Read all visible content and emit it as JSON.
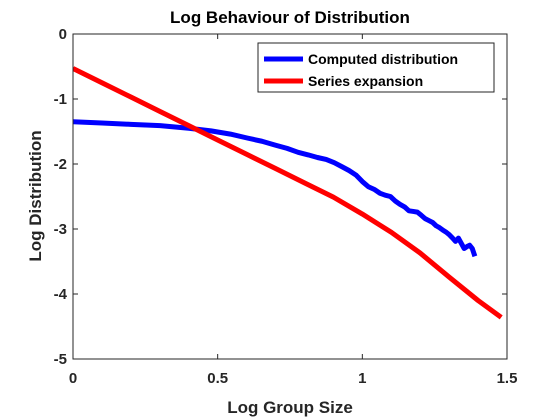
{
  "chart_data": {
    "type": "line",
    "title": "Log Behaviour of Distribution",
    "xlabel": "Log Group Size",
    "ylabel": "Log Distribution",
    "xlim": [
      0,
      1.5
    ],
    "ylim": [
      -5,
      0
    ],
    "xticks": [
      0,
      0.5,
      1,
      1.5
    ],
    "xtick_labels": [
      "0",
      "0.5",
      "1",
      "1.5"
    ],
    "yticks": [
      0,
      -1,
      -2,
      -3,
      -4,
      -5
    ],
    "ytick_labels": [
      "0",
      "-1",
      "-2",
      "-3",
      "-4",
      "-5"
    ],
    "grid": false,
    "legend": {
      "position": "top-right"
    },
    "series": [
      {
        "name": "Computed distribution",
        "color": "#0000ff",
        "x": [
          0,
          0.1,
          0.2,
          0.301,
          0.4,
          0.477,
          0.544,
          0.602,
          0.653,
          0.699,
          0.74,
          0.778,
          0.813,
          0.845,
          0.875,
          0.903,
          0.929,
          0.954,
          0.978,
          1.0,
          1.021,
          1.041,
          1.061,
          1.079,
          1.097,
          1.114,
          1.13,
          1.146,
          1.161,
          1.176,
          1.19,
          1.204,
          1.217,
          1.23,
          1.243,
          1.255,
          1.267,
          1.279,
          1.29,
          1.301,
          1.312,
          1.322,
          1.332,
          1.342,
          1.352,
          1.362,
          1.371,
          1.38,
          1.389
        ],
        "y": [
          -1.35,
          -1.37,
          -1.39,
          -1.41,
          -1.45,
          -1.49,
          -1.54,
          -1.6,
          -1.65,
          -1.71,
          -1.76,
          -1.82,
          -1.86,
          -1.9,
          -1.93,
          -1.98,
          -2.04,
          -2.1,
          -2.17,
          -2.27,
          -2.35,
          -2.39,
          -2.45,
          -2.48,
          -2.5,
          -2.57,
          -2.62,
          -2.66,
          -2.72,
          -2.73,
          -2.74,
          -2.79,
          -2.84,
          -2.87,
          -2.9,
          -2.95,
          -2.98,
          -3.02,
          -3.05,
          -3.09,
          -3.14,
          -3.19,
          -3.14,
          -3.22,
          -3.3,
          -3.27,
          -3.25,
          -3.3,
          -3.42
        ]
      },
      {
        "name": "Series expansion",
        "color": "#ff0000",
        "x": [
          0,
          0.1,
          0.2,
          0.3,
          0.4,
          0.5,
          0.6,
          0.7,
          0.8,
          0.9,
          1.0,
          1.1,
          1.2,
          1.3,
          1.4,
          1.48
        ],
        "y": [
          -0.53,
          -0.75,
          -0.97,
          -1.19,
          -1.41,
          -1.63,
          -1.85,
          -2.07,
          -2.29,
          -2.51,
          -2.77,
          -3.05,
          -3.37,
          -3.74,
          -4.1,
          -4.36
        ]
      }
    ]
  }
}
